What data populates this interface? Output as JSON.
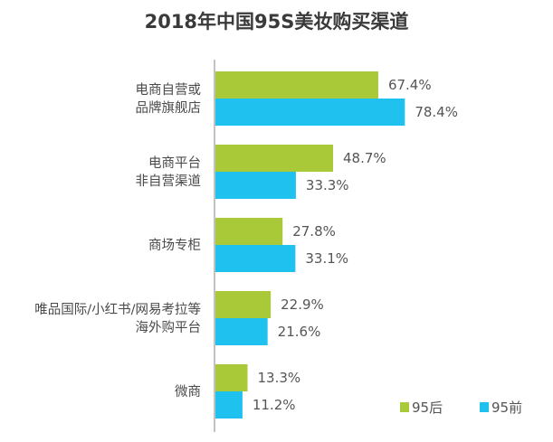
{
  "chart_data": {
    "type": "bar",
    "orientation": "horizontal",
    "title": "2018年中国95S美妆购买渠道",
    "categories": [
      [
        "电商自营或",
        "品牌旗舰店"
      ],
      [
        "电商平台",
        "非自营渠道"
      ],
      [
        "商场专柜"
      ],
      [
        "唯品国际/小红书/网易考拉等",
        "海外购平台"
      ],
      [
        "微商"
      ]
    ],
    "series": [
      {
        "name": "95后",
        "color": "#a9c938",
        "values": [
          67.4,
          48.7,
          27.8,
          22.9,
          13.3
        ],
        "labels": [
          "67.4%",
          "48.7%",
          "27.8%",
          "22.9%",
          "13.3%"
        ]
      },
      {
        "name": "95前",
        "color": "#1fc2ef",
        "values": [
          78.4,
          33.3,
          33.1,
          21.6,
          11.2
        ],
        "labels": [
          "78.4%",
          "33.3%",
          "33.1%",
          "21.6%",
          "11.2%"
        ]
      }
    ],
    "unit": "%",
    "xlim": [
      0,
      100
    ],
    "grid": false,
    "legend": "bottom-right"
  }
}
